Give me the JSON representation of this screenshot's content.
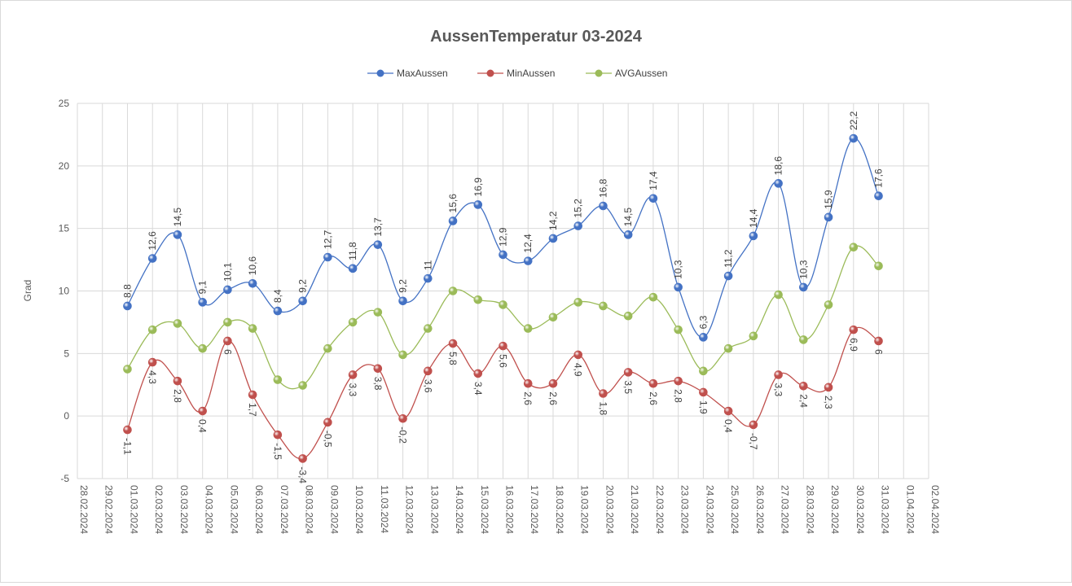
{
  "chart_data": {
    "type": "line",
    "title": "AussenTemperatur 03-2024",
    "ylabel": "Grad",
    "xlabel": "",
    "ylim": [
      -5,
      25
    ],
    "yticks": [
      "-5",
      "0",
      "5",
      "10",
      "15",
      "20",
      "25"
    ],
    "grid": true,
    "legend_position": "top",
    "x_ticks": [
      "28.02.2024",
      "29.02.2024",
      "01.03.2024",
      "02.03.2024",
      "03.03.2024",
      "04.03.2024",
      "05.03.2024",
      "06.03.2024",
      "07.03.2024",
      "08.03.2024",
      "09.03.2024",
      "10.03.2024",
      "11.03.2024",
      "12.03.2024",
      "13.03.2024",
      "14.03.2024",
      "15.03.2024",
      "16.03.2024",
      "17.03.2024",
      "18.03.2024",
      "19.03.2024",
      "20.03.2024",
      "21.03.2024",
      "22.03.2024",
      "23.03.2024",
      "24.03.2024",
      "25.03.2024",
      "26.03.2024",
      "27.03.2024",
      "28.03.2024",
      "29.03.2024",
      "30.03.2024",
      "31.03.2024",
      "01.04.2024",
      "02.04.2024"
    ],
    "data_start_index": 2,
    "series": [
      {
        "name": "MaxAussen",
        "color": "#4472c4",
        "labels_above": true,
        "values": [
          8.8,
          12.6,
          14.5,
          9.1,
          10.1,
          10.6,
          8.4,
          9.2,
          12.7,
          11.8,
          13.7,
          9.2,
          11,
          15.6,
          16.9,
          12.9,
          12.4,
          14.2,
          15.2,
          16.8,
          14.5,
          17.4,
          10.3,
          6.3,
          11.2,
          14.4,
          18.6,
          10.3,
          15.9,
          22.2,
          17.6
        ],
        "labels": [
          "8,8",
          "12,6",
          "14,5",
          "9,1",
          "10,1",
          "10,6",
          "8,4",
          "9,2",
          "12,7",
          "11,8",
          "13,7",
          "9,2",
          "11",
          "15,6",
          "16,9",
          "12,9",
          "12,4",
          "14,2",
          "15,2",
          "16,8",
          "14,5",
          "17,4",
          "10,3",
          "6,3",
          "11,2",
          "14,4",
          "18,6",
          "10,3",
          "15,9",
          "22,2",
          "17,6"
        ]
      },
      {
        "name": "MinAussen",
        "color": "#c0504d",
        "labels_above": false,
        "values": [
          -1.1,
          4.3,
          2.8,
          0.4,
          6,
          1.7,
          -1.5,
          -3.4,
          -0.5,
          3.3,
          3.8,
          -0.2,
          3.6,
          5.8,
          3.4,
          5.6,
          2.6,
          2.6,
          4.9,
          1.8,
          3.5,
          2.6,
          2.8,
          1.9,
          0.4,
          -0.7,
          3.3,
          2.4,
          2.3,
          6.9,
          6
        ],
        "labels": [
          "-1,1",
          "4,3",
          "2,8",
          "0,4",
          "6",
          "1,7",
          "-1,5",
          "-3,4",
          "-0,5",
          "3,3",
          "3,8",
          "-0,2",
          "3,6",
          "5,8",
          "3,4",
          "5,6",
          "2,6",
          "2,6",
          "4,9",
          "1,8",
          "3,5",
          "2,6",
          "2,8",
          "1,9",
          "0,4",
          "-0,7",
          "3,3",
          "2,4",
          "2,3",
          "6,9",
          "6"
        ]
      },
      {
        "name": "AVGAussen",
        "color": "#9bbb59",
        "labels_above": null,
        "values": [
          3.75,
          6.9,
          7.4,
          5.4,
          7.5,
          7,
          2.9,
          2.45,
          5.4,
          7.5,
          8.3,
          4.9,
          7,
          10,
          9.3,
          8.9,
          7,
          7.9,
          9.1,
          8.8,
          8,
          9.5,
          6.9,
          3.6,
          5.4,
          6.4,
          9.7,
          6.1,
          8.9,
          13.5,
          12
        ]
      }
    ]
  }
}
